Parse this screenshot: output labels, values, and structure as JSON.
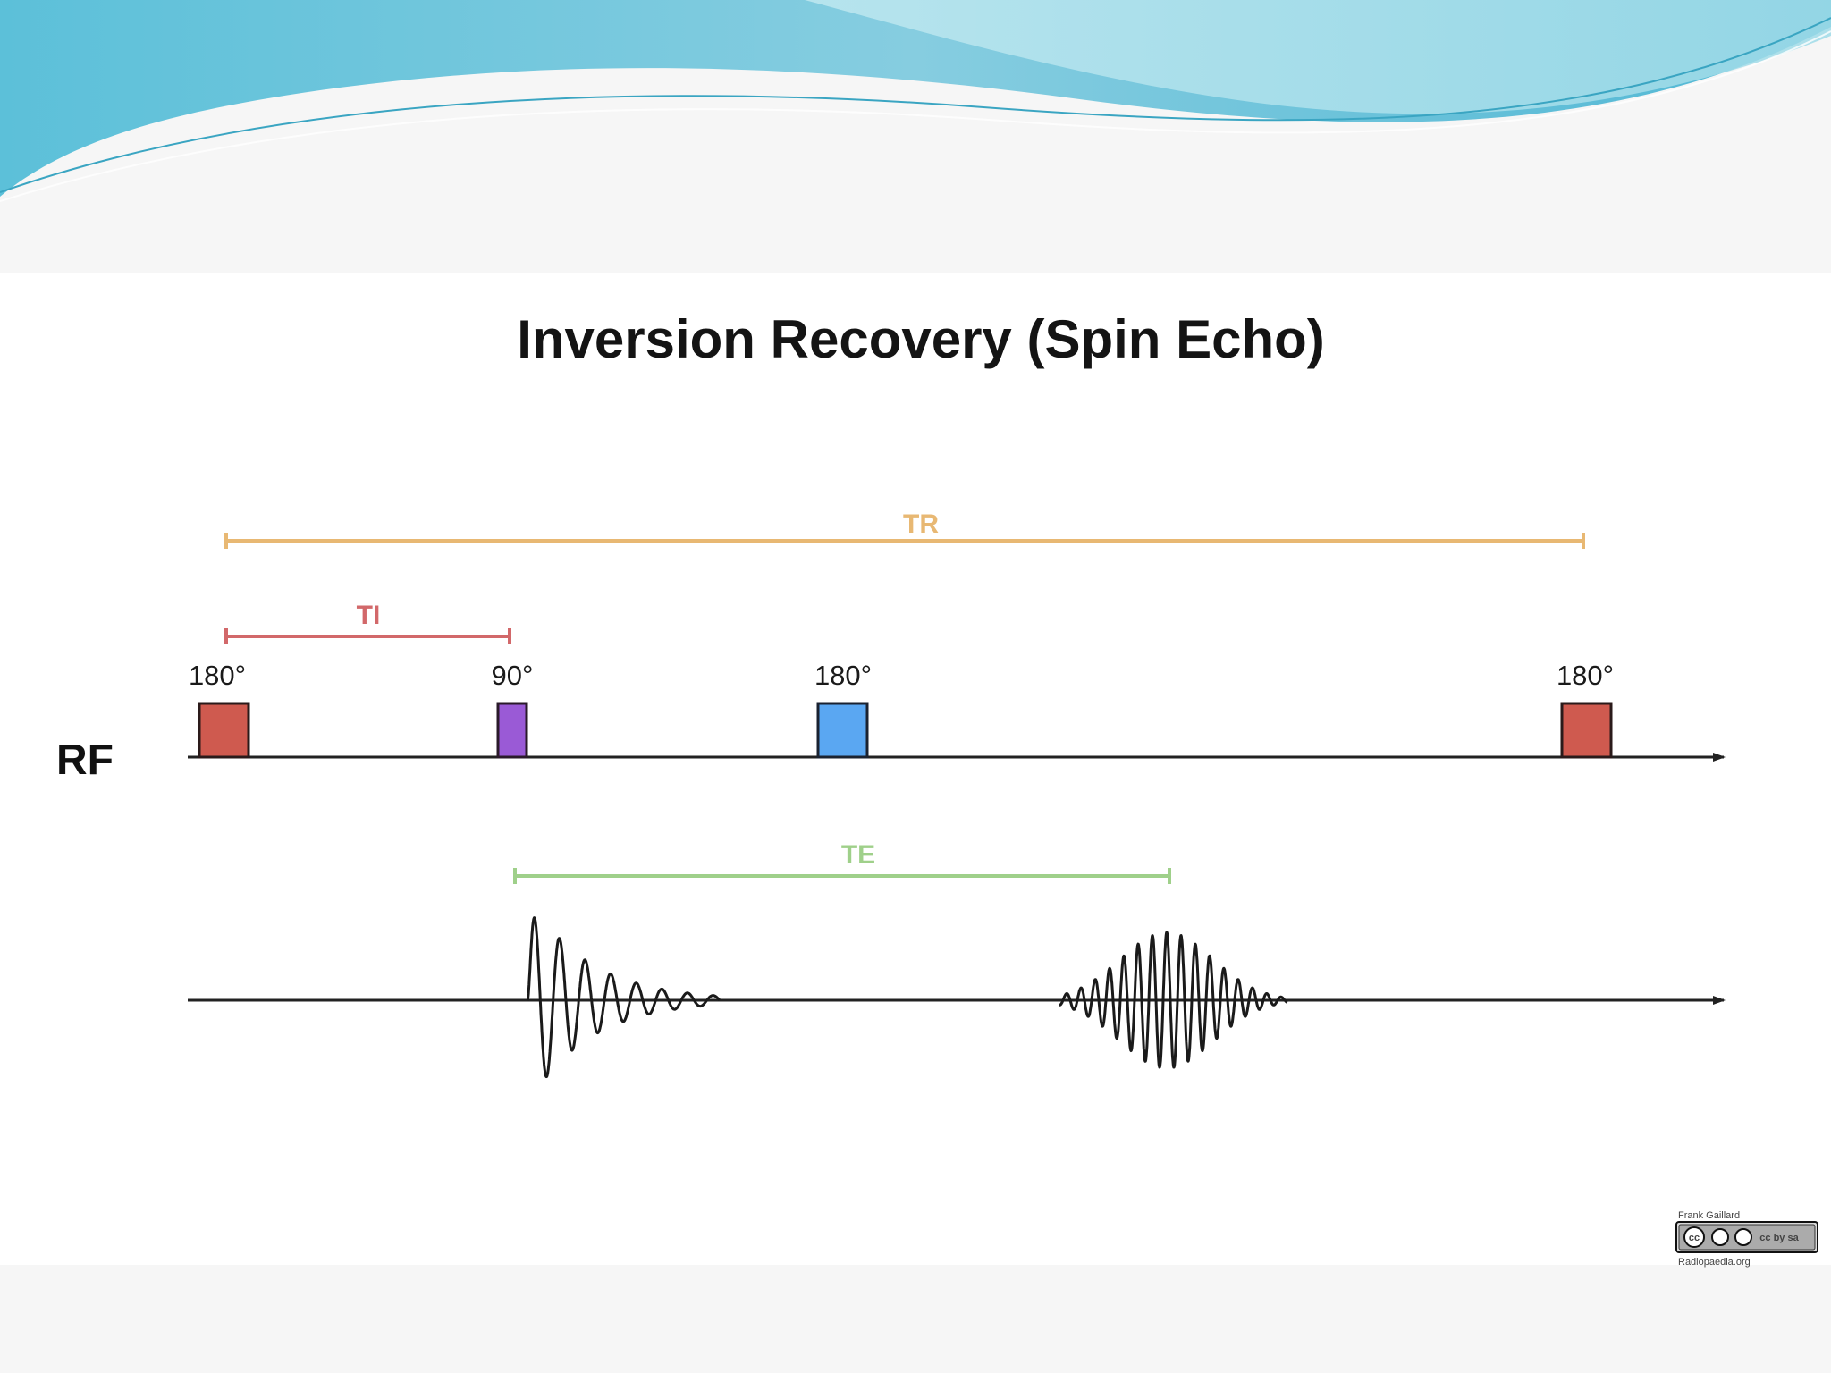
{
  "slide": {
    "title": "Inversion Recovery (Spin Echo)"
  },
  "intervals": {
    "tr": {
      "label": "TR",
      "color": "#e8b873"
    },
    "ti": {
      "label": "TI",
      "color": "#d2686a"
    },
    "te": {
      "label": "TE",
      "color": "#9fd08a"
    }
  },
  "rf_axis": {
    "label": "RF",
    "pulses": [
      {
        "angle": "180°",
        "color": "#cf5a4f"
      },
      {
        "angle": "90°",
        "color": "#9a5ad6"
      },
      {
        "angle": "180°",
        "color": "#5aa7f2"
      },
      {
        "angle": "180°",
        "color": "#cf5a4f"
      }
    ]
  },
  "signal_axis": {
    "waveforms": [
      "free-induction-decay",
      "spin-echo"
    ]
  },
  "license": {
    "author": "Frank Gaillard",
    "badge": "cc by sa",
    "site": "Radiopaedia.org"
  },
  "colors": {
    "header_wave_dark": "#6fc2d8",
    "header_wave_light": "#b4e4ee",
    "axis": "#222222",
    "waveform": "#1a1a1a"
  }
}
